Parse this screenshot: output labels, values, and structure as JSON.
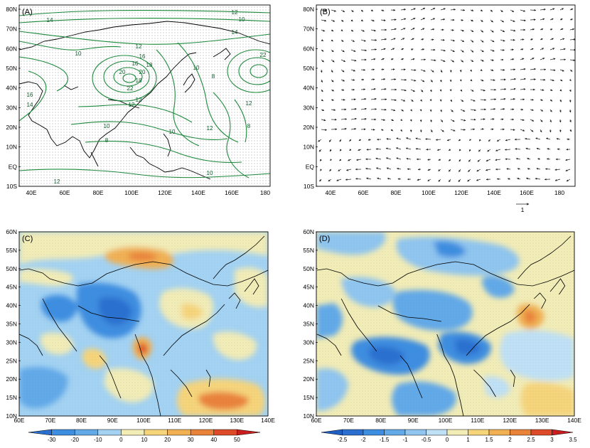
{
  "panels": {
    "A": {
      "label": "(A)",
      "lat_ticks": [
        "80N",
        "70N",
        "60N",
        "50N",
        "40N",
        "30N",
        "20N",
        "10N",
        "EQ",
        "10S"
      ],
      "lon_ticks": [
        "40E",
        "60E",
        "80E",
        "100E",
        "120E",
        "140E",
        "160E",
        "180"
      ],
      "contour_labels": [
        "14",
        "12",
        "10",
        "14",
        "10",
        "12",
        "22",
        "10",
        "16",
        "18",
        "20",
        "22",
        "16",
        "12",
        "20",
        "18",
        "16",
        "14",
        "12",
        "10",
        "10",
        "12",
        "8",
        "8",
        "12",
        "10",
        "12",
        "8"
      ]
    },
    "B": {
      "label": "(B)",
      "lat_ticks": [
        "80N",
        "70N",
        "60N",
        "50N",
        "40N",
        "30N",
        "20N",
        "10N",
        "EQ",
        "10S"
      ],
      "lon_ticks": [
        "40E",
        "60E",
        "80E",
        "100E",
        "120E",
        "140E",
        "160E",
        "180"
      ],
      "reference_vector_label": "1"
    },
    "C": {
      "label": "(C)",
      "lat_ticks": [
        "60N",
        "55N",
        "50N",
        "45N",
        "40N",
        "35N",
        "30N",
        "25N",
        "20N",
        "15N",
        "10N"
      ],
      "lon_ticks": [
        "60E",
        "70E",
        "80E",
        "90E",
        "100E",
        "110E",
        "120E",
        "130E",
        "140E"
      ],
      "colorbar_labels": [
        "-30",
        "-20",
        "-10",
        "0",
        "10",
        "20",
        "30",
        "40",
        "50"
      ],
      "colors": [
        "#2a6fcf",
        "#3d8de0",
        "#62a9e8",
        "#a3d2f2",
        "#f2ecb6",
        "#f6d47a",
        "#f1b052",
        "#ea823a",
        "#dc4a28",
        "#c81e1e"
      ]
    },
    "D": {
      "label": "(D)",
      "lat_ticks": [
        "60N",
        "55N",
        "50N",
        "45N",
        "40N",
        "35N",
        "30N",
        "25N",
        "20N",
        "15N",
        "10N"
      ],
      "lon_ticks": [
        "60E",
        "70E",
        "80E",
        "90E",
        "100E",
        "110E",
        "120E",
        "130E",
        "140E"
      ],
      "colorbar_labels": [
        "-2.5",
        "-2",
        "-1.5",
        "-1",
        "-0.5",
        "0",
        "1",
        "1.5",
        "2",
        "2.5",
        "3",
        "3.5"
      ],
      "colors": [
        "#1f5fc4",
        "#2a6fcf",
        "#3d8de0",
        "#62a9e8",
        "#8fc5ef",
        "#bfe0f5",
        "#f2ecb6",
        "#f6d47a",
        "#f1b052",
        "#ea823a",
        "#dc4a28",
        "#c81e1e"
      ]
    }
  }
}
